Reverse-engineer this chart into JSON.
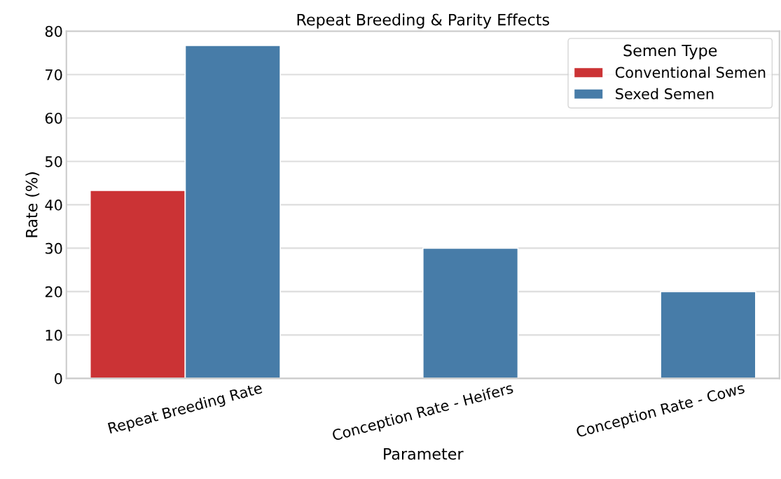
{
  "chart_data": {
    "type": "bar",
    "title": "Repeat Breeding & Parity Effects",
    "xlabel": "Parameter",
    "ylabel": "Rate (%)",
    "legend_title": "Semen Type",
    "categories": [
      "Repeat Breeding Rate",
      "Conception Rate - Heifers",
      "Conception Rate - Cows"
    ],
    "series": [
      {
        "name": "Conventional Semen",
        "color": "#cb3335",
        "values": [
          43.3,
          null,
          null
        ]
      },
      {
        "name": "Sexed Semen",
        "color": "#477ca8",
        "values": [
          76.7,
          30,
          20
        ]
      }
    ],
    "ylim": [
      0,
      80
    ],
    "yticks": [
      0,
      10,
      20,
      30,
      40,
      50,
      60,
      70,
      80
    ],
    "grid": "y",
    "legend": "top right"
  }
}
